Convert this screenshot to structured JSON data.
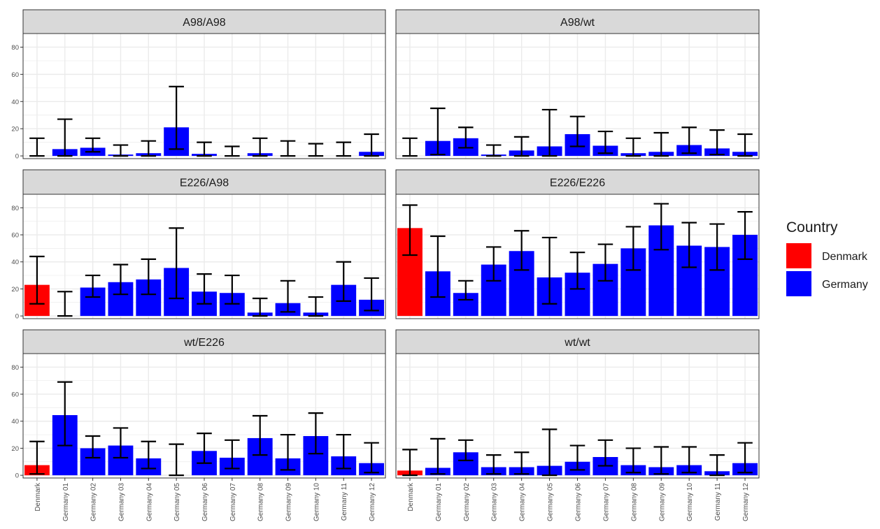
{
  "chart_data": {
    "type": "bar",
    "facet_layout": "3 rows x 2 columns",
    "categories": [
      "Denmark",
      "Germany 01",
      "Germany 02",
      "Germany 03",
      "Germany 04",
      "Germany 05",
      "Germany 06",
      "Germany 07",
      "Germany 08",
      "Germany 09",
      "Germany 10",
      "Germany 11",
      "Germany 12"
    ],
    "category_country": [
      "Denmark",
      "Germany",
      "Germany",
      "Germany",
      "Germany",
      "Germany",
      "Germany",
      "Germany",
      "Germany",
      "Germany",
      "Germany",
      "Germany",
      "Germany"
    ],
    "ylim": [
      -2,
      90
    ],
    "yticks": [
      0,
      20,
      40,
      60,
      80
    ],
    "grid": true,
    "legend": {
      "title": "Country",
      "position": "right",
      "entries": [
        {
          "label": "Denmark",
          "color": "#ff0000"
        },
        {
          "label": "Germany",
          "color": "#0000ff"
        }
      ]
    },
    "panels": [
      {
        "title": "A98/A98",
        "values": [
          0,
          5,
          6,
          1,
          2,
          21,
          1.5,
          0,
          2,
          0,
          0,
          0,
          3
        ],
        "err_low": [
          0,
          0,
          3,
          0,
          0,
          5,
          0,
          0,
          0,
          0,
          0,
          0,
          0
        ],
        "err_high": [
          13,
          27,
          13,
          8,
          11,
          51,
          10,
          7,
          13,
          11,
          9,
          10,
          16
        ]
      },
      {
        "title": "A98/wt",
        "values": [
          0,
          11,
          13,
          1,
          4,
          7,
          16,
          7.5,
          2,
          3,
          8,
          5.5,
          3
        ],
        "err_low": [
          0,
          1,
          6,
          0,
          0,
          0,
          7,
          2,
          0,
          0,
          2,
          1,
          0
        ],
        "err_high": [
          13,
          35,
          21,
          8,
          14,
          34,
          29,
          18,
          13,
          17,
          21,
          19,
          16
        ]
      },
      {
        "title": "E226/A98",
        "values": [
          23,
          0,
          21,
          25,
          27,
          35.5,
          18,
          17,
          2.5,
          9.5,
          2.5,
          23,
          12
        ],
        "err_low": [
          9,
          0,
          14,
          16,
          16,
          13,
          9,
          9,
          0,
          3,
          0,
          11,
          4
        ],
        "err_high": [
          44,
          18,
          30,
          38,
          42,
          65,
          31,
          30,
          13,
          26,
          14,
          40,
          28
        ]
      },
      {
        "title": "E226/E226",
        "values": [
          65,
          33,
          17,
          38,
          48,
          28.5,
          32,
          38.5,
          50,
          67,
          52,
          51,
          60
        ],
        "err_low": [
          45,
          14,
          12,
          26,
          34,
          9,
          20,
          26,
          34,
          49,
          36,
          34,
          42
        ],
        "err_high": [
          82,
          59,
          26,
          51,
          63,
          58,
          47,
          53,
          66,
          83,
          69,
          68,
          77
        ]
      },
      {
        "title": "wt/E226",
        "values": [
          7.5,
          44.5,
          20,
          22,
          12.5,
          0,
          18,
          13,
          27.5,
          12.5,
          29,
          14,
          9
        ],
        "err_low": [
          1,
          22,
          13,
          13,
          5,
          0,
          9,
          5,
          15,
          4,
          16,
          5,
          2
        ],
        "err_high": [
          25,
          69,
          29,
          35,
          25,
          23,
          31,
          26,
          44,
          30,
          46,
          30,
          24
        ]
      },
      {
        "title": "wt/wt",
        "values": [
          3.5,
          5.5,
          17,
          6,
          6,
          7,
          10,
          13.5,
          7.5,
          6,
          7.5,
          3,
          9
        ],
        "err_low": [
          0,
          1,
          11,
          1,
          1,
          0,
          4,
          7,
          2,
          1,
          2,
          0,
          2
        ],
        "err_high": [
          19,
          27,
          26,
          15,
          17,
          34,
          22,
          26,
          20,
          21,
          21,
          15,
          24
        ]
      }
    ]
  }
}
